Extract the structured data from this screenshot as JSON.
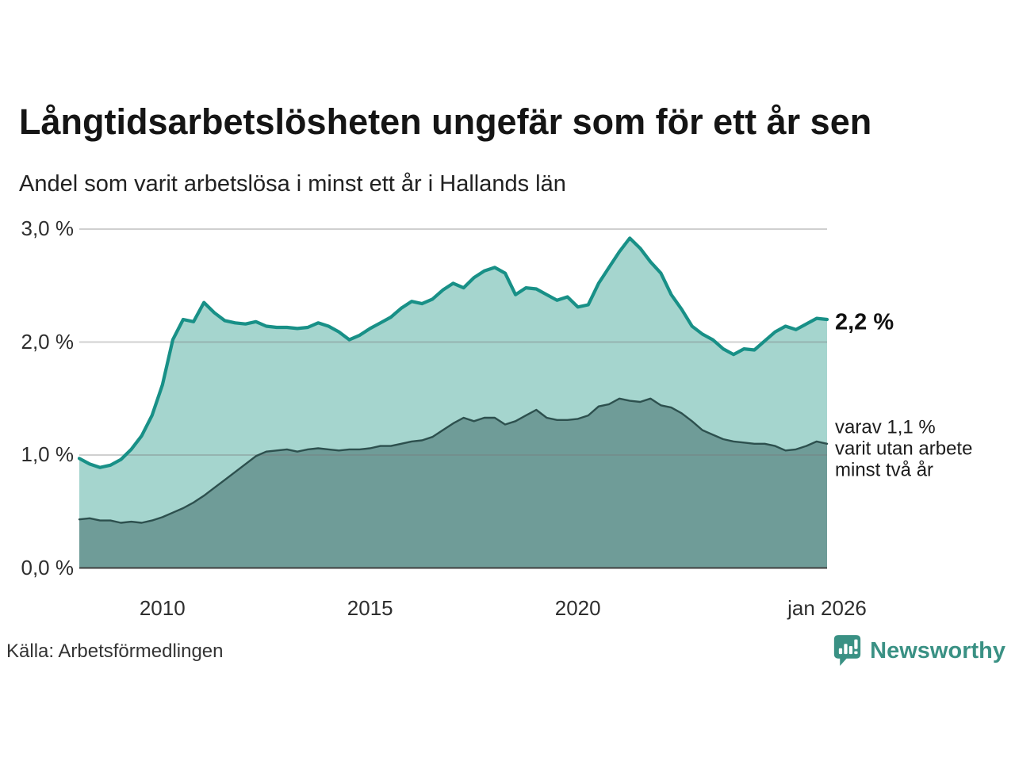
{
  "annotations": {
    "latest_total": "2,2 %",
    "two_year_note": "varav 1,1 %\nvarit utan arbete\nminst två år"
  },
  "footer": {
    "source": "Källa: Arbetsförmedlingen",
    "brand": "Newsworthy"
  },
  "colors": {
    "total_line": "#189087",
    "total_fill": "#a5d5ce",
    "two_year_line": "#2d504e",
    "two_year_fill": "#6f9c98",
    "grid": "rgba(120,120,120,0.35)",
    "axis": "#3f3f3f",
    "brand_teal": "#3a9184"
  },
  "chart_data": {
    "type": "area",
    "title": "Långtidsarbetslösheten ungefär som för ett år sen",
    "subtitle": "Andel som varit arbetslösa i minst ett år i Hallands län",
    "xlabel": "",
    "ylabel": "",
    "xlim": [
      2008,
      2026
    ],
    "ylim": [
      0,
      3.0
    ],
    "grid": "horizontal",
    "legend_position": "right-annotations",
    "x": [
      2008,
      2008.25,
      2008.5,
      2008.75,
      2009,
      2009.25,
      2009.5,
      2009.75,
      2010,
      2010.25,
      2010.5,
      2010.75,
      2011,
      2011.25,
      2011.5,
      2011.75,
      2012,
      2012.25,
      2012.5,
      2012.75,
      2013,
      2013.25,
      2013.5,
      2013.75,
      2014,
      2014.25,
      2014.5,
      2014.75,
      2015,
      2015.25,
      2015.5,
      2015.75,
      2016,
      2016.25,
      2016.5,
      2016.75,
      2017,
      2017.25,
      2017.5,
      2017.75,
      2018,
      2018.25,
      2018.5,
      2018.75,
      2019,
      2019.25,
      2019.5,
      2019.75,
      2020,
      2020.25,
      2020.5,
      2020.75,
      2021,
      2021.25,
      2021.5,
      2021.75,
      2022,
      2022.25,
      2022.5,
      2022.75,
      2023,
      2023.25,
      2023.5,
      2023.75,
      2024,
      2024.25,
      2024.5,
      2024.75,
      2025,
      2025.25,
      2025.5,
      2025.75,
      2026
    ],
    "series": [
      {
        "name": "Arbetslösa minst ett år",
        "latest_value": "2,2 %",
        "values": [
          0.97,
          0.92,
          0.89,
          0.91,
          0.96,
          1.05,
          1.17,
          1.35,
          1.62,
          2.02,
          2.2,
          2.18,
          2.35,
          2.26,
          2.19,
          2.17,
          2.16,
          2.18,
          2.14,
          2.13,
          2.13,
          2.12,
          2.13,
          2.17,
          2.14,
          2.09,
          2.02,
          2.06,
          2.12,
          2.17,
          2.22,
          2.3,
          2.36,
          2.34,
          2.38,
          2.46,
          2.52,
          2.48,
          2.57,
          2.63,
          2.66,
          2.61,
          2.42,
          2.48,
          2.47,
          2.42,
          2.37,
          2.4,
          2.31,
          2.33,
          2.52,
          2.66,
          2.8,
          2.92,
          2.83,
          2.71,
          2.61,
          2.42,
          2.29,
          2.14,
          2.07,
          2.02,
          1.94,
          1.89,
          1.94,
          1.93,
          2.01,
          2.09,
          2.14,
          2.11,
          2.16,
          2.21,
          2.2
        ]
      },
      {
        "name": "Varav utan arbete minst två år",
        "latest_value": "1,1 %",
        "values": [
          0.43,
          0.44,
          0.42,
          0.42,
          0.4,
          0.41,
          0.4,
          0.42,
          0.45,
          0.49,
          0.53,
          0.58,
          0.64,
          0.71,
          0.78,
          0.85,
          0.92,
          0.99,
          1.03,
          1.04,
          1.05,
          1.03,
          1.05,
          1.06,
          1.05,
          1.04,
          1.05,
          1.05,
          1.06,
          1.08,
          1.08,
          1.1,
          1.12,
          1.13,
          1.16,
          1.22,
          1.28,
          1.33,
          1.3,
          1.33,
          1.33,
          1.27,
          1.3,
          1.35,
          1.4,
          1.33,
          1.31,
          1.31,
          1.32,
          1.35,
          1.43,
          1.45,
          1.5,
          1.48,
          1.47,
          1.5,
          1.44,
          1.42,
          1.37,
          1.3,
          1.22,
          1.18,
          1.14,
          1.12,
          1.11,
          1.1,
          1.1,
          1.08,
          1.04,
          1.05,
          1.08,
          1.12,
          1.1
        ]
      }
    ],
    "x_ticks": [
      {
        "label": "2010",
        "x": 2010
      },
      {
        "label": "2015",
        "x": 2015
      },
      {
        "label": "2020",
        "x": 2020
      },
      {
        "label": "jan 2026",
        "x": 2026
      }
    ],
    "y_ticks": [
      {
        "label": "0,0 %",
        "value": 0
      },
      {
        "label": "1,0 %",
        "value": 1
      },
      {
        "label": "2,0 %",
        "value": 2
      },
      {
        "label": "3,0 %",
        "value": 3
      }
    ]
  }
}
